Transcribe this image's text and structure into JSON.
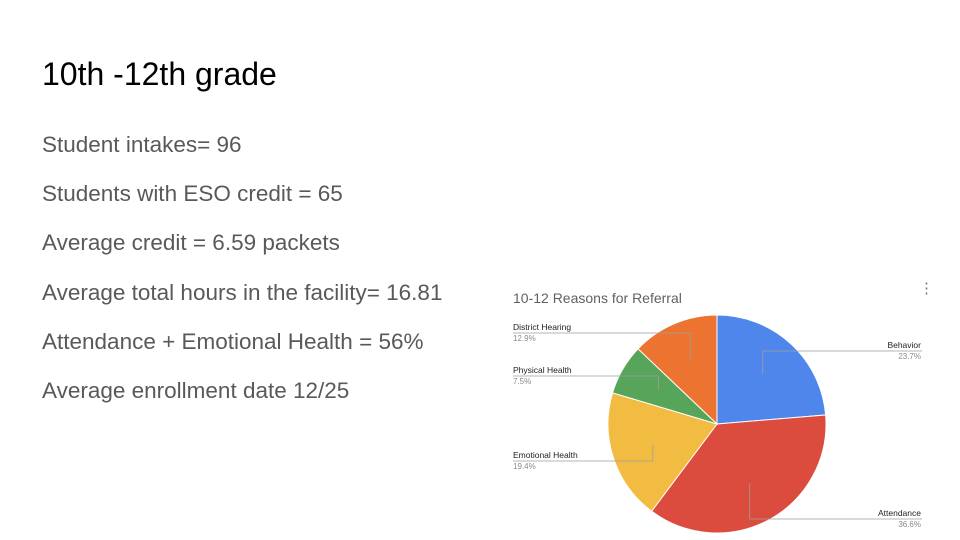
{
  "slide": {
    "title": "10th -12th grade",
    "bullets": [
      "Student intakes= 96",
      "Students with ESO credit = 65",
      "Average credit = 6.59 packets",
      "Average total hours in the facility= 16.81",
      "Attendance + Emotional Health = 56%",
      "Average enrollment date 12/25"
    ]
  },
  "chart_menu_icon": "more-vert-icon",
  "chart_data": {
    "type": "pie",
    "title": "10-12 Reasons for Referral",
    "legend": "labels-outside",
    "slices": [
      {
        "label": "Behavior",
        "value": 23.7,
        "display": "23.7%",
        "color": "#4e86ec"
      },
      {
        "label": "Attendance",
        "value": 36.6,
        "display": "36.6%",
        "color": "#dc4c3e"
      },
      {
        "label": "Emotional Health",
        "value": 19.4,
        "display": "19.4%",
        "color": "#f2bc42"
      },
      {
        "label": "Physical Health",
        "value": 7.5,
        "display": "7.5%",
        "color": "#57a55a"
      },
      {
        "label": "District Hearing",
        "value": 12.9,
        "display": "12.9%",
        "color": "#ec7430"
      }
    ]
  }
}
